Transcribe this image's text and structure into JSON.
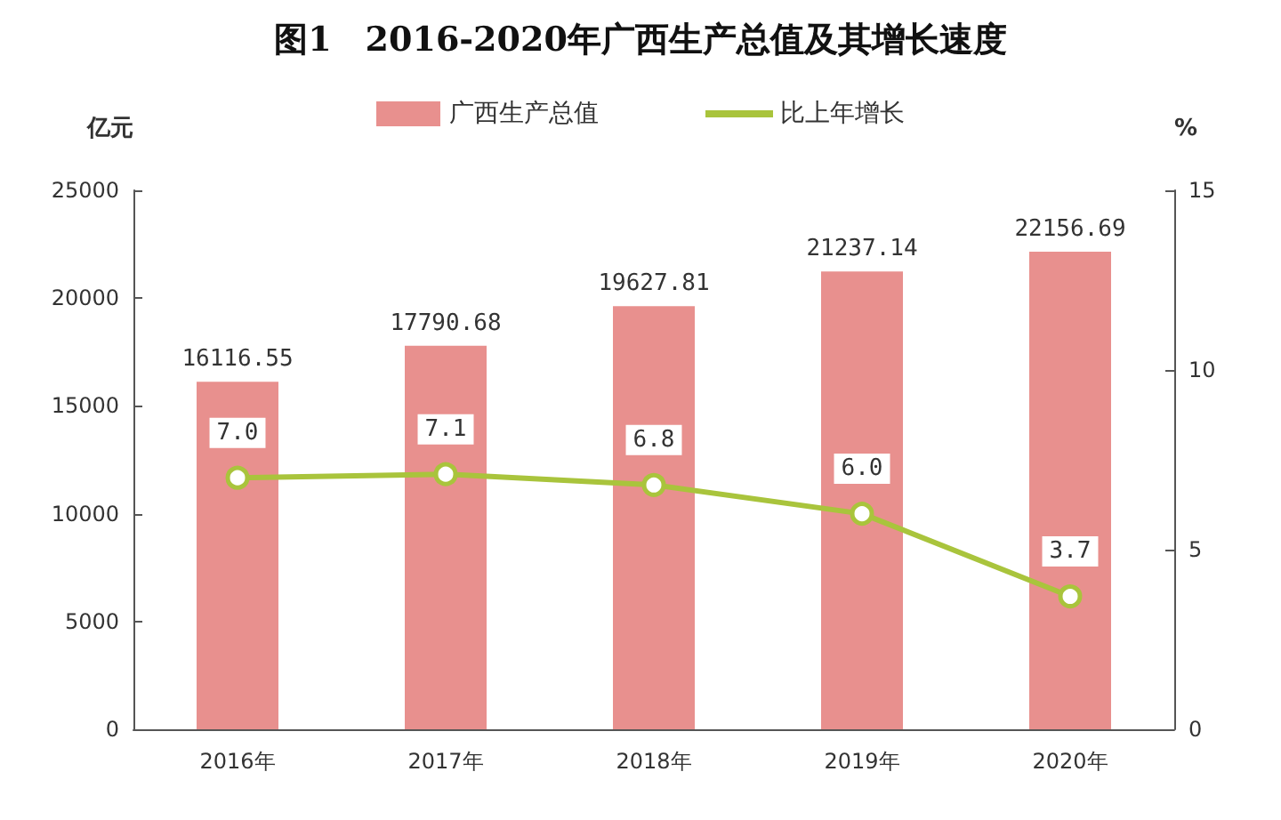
{
  "chart_data": {
    "type": "bar",
    "title": "图1　2016-2020年广西生产总值及其增长速度",
    "ylabel": "亿元",
    "y2label": "%",
    "categories": [
      "2016年",
      "2017年",
      "2018年",
      "2019年",
      "2020年"
    ],
    "series": [
      {
        "name": "广西生产总值",
        "color": "#e8908e",
        "values": [
          16116.55,
          17790.68,
          19627.81,
          21237.14,
          22156.69
        ]
      },
      {
        "name": "比上年增长",
        "type": "line",
        "axis": "y2",
        "color": "#a9c43c",
        "values": [
          7.0,
          7.1,
          6.8,
          6.0,
          3.7
        ],
        "value_labels": [
          "7.0",
          "7.1",
          "6.8",
          "6.0",
          "3.7"
        ]
      }
    ],
    "ylim": [
      0,
      25000
    ],
    "yticks": [
      0,
      5000,
      10000,
      15000,
      20000,
      25000
    ],
    "y2lim": [
      0,
      15
    ],
    "y2ticks": [
      0,
      5,
      10,
      15
    ],
    "data_labels": true,
    "legend": "top",
    "grid": false,
    "marker": "circle",
    "line_style": "solid"
  }
}
